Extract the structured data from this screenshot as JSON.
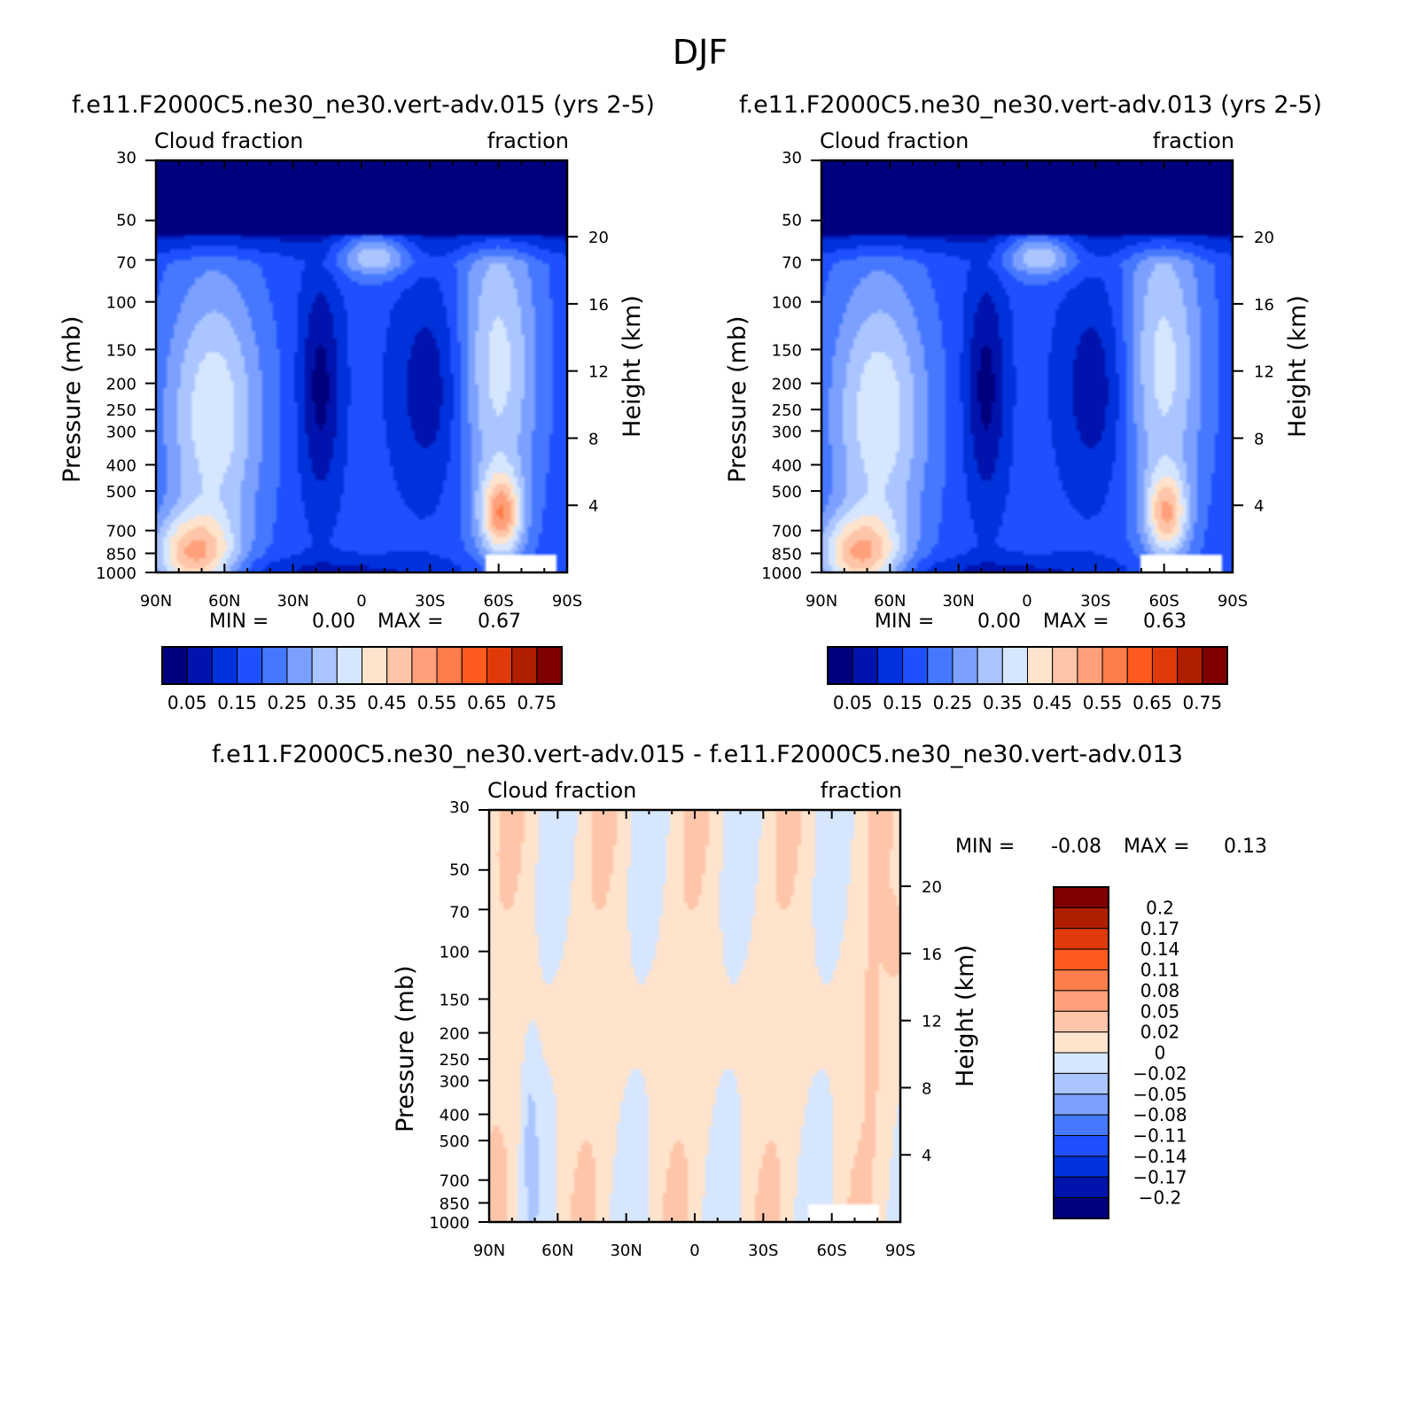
{
  "figure": {
    "title": "DJF",
    "diff_title": "f.e11.F2000C5.ne30_ne30.vert-adv.015 - f.e11.F2000C5.ne30_ne30.vert-adv.013"
  },
  "chart_data": [
    {
      "type": "heatmap",
      "title": "f.e11.F2000C5.ne30_ne30.vert-adv.015 (yrs 2-5)",
      "left_label": "Cloud fraction",
      "right_label": "fraction",
      "ylabel": "Pressure (mb)",
      "ylabel_right": "Height (km)",
      "x_ticks": [
        "90N",
        "60N",
        "30N",
        "0",
        "30S",
        "60S",
        "90S"
      ],
      "y_ticks": [
        "30",
        "50",
        "70",
        "100",
        "150",
        "200",
        "250",
        "300",
        "400",
        "500",
        "700",
        "850",
        "1000"
      ],
      "y2_ticks": [
        "20",
        "16",
        "12",
        "8",
        "4"
      ],
      "min_label": "MIN =",
      "min": "0.00",
      "max_label": "MAX =",
      "max": "0.67",
      "colorbar_labels": [
        "0.05",
        "0.15",
        "0.25",
        "0.35",
        "0.45",
        "0.55",
        "0.65",
        "0.75"
      ]
    },
    {
      "type": "heatmap",
      "title": "f.e11.F2000C5.ne30_ne30.vert-adv.013 (yrs 2-5)",
      "left_label": "Cloud fraction",
      "right_label": "fraction",
      "ylabel": "Pressure (mb)",
      "ylabel_right": "Height (km)",
      "x_ticks": [
        "90N",
        "60N",
        "30N",
        "0",
        "30S",
        "60S",
        "90S"
      ],
      "y_ticks": [
        "30",
        "50",
        "70",
        "100",
        "150",
        "200",
        "250",
        "300",
        "400",
        "500",
        "700",
        "850",
        "1000"
      ],
      "y2_ticks": [
        "20",
        "16",
        "12",
        "8",
        "4"
      ],
      "min_label": "MIN =",
      "min": "0.00",
      "max_label": "MAX =",
      "max": "0.63",
      "colorbar_labels": [
        "0.05",
        "0.15",
        "0.25",
        "0.35",
        "0.45",
        "0.55",
        "0.65",
        "0.75"
      ]
    },
    {
      "type": "heatmap",
      "left_label": "Cloud fraction",
      "right_label": "fraction",
      "ylabel": "Pressure (mb)",
      "ylabel_right": "Height (km)",
      "x_ticks": [
        "90N",
        "60N",
        "30N",
        "0",
        "30S",
        "60S",
        "90S"
      ],
      "y_ticks": [
        "30",
        "50",
        "70",
        "100",
        "150",
        "200",
        "250",
        "300",
        "400",
        "500",
        "700",
        "850",
        "1000"
      ],
      "y2_ticks": [
        "20",
        "16",
        "12",
        "8",
        "4"
      ],
      "min_label": "MIN =",
      "min": "-0.08",
      "max_label": "MAX =",
      "max": "0.13",
      "colorbar_labels": [
        "0.2",
        "0.17",
        "0.14",
        "0.11",
        "0.08",
        "0.05",
        "0.02",
        "0",
        "-0.02",
        "-0.05",
        "-0.08",
        "-0.11",
        "-0.14",
        "-0.17",
        "-0.2"
      ]
    }
  ],
  "colors": {
    "abs_scale": [
      "#00007f",
      "#0014ad",
      "#0032dc",
      "#1e50ff",
      "#4678ff",
      "#7ba0ff",
      "#aac5ff",
      "#d6e6ff",
      "#ffe3cc",
      "#ffc5a8",
      "#ffa07a",
      "#ff7d4a",
      "#ff5a1e",
      "#e03a0a",
      "#b01e00",
      "#7f0000"
    ],
    "diff_scale": [
      "#7f0000",
      "#b01e00",
      "#e03a0a",
      "#ff5a1e",
      "#ff7d4a",
      "#ffa07a",
      "#ffc5a8",
      "#ffe3cc",
      "#d6e6ff",
      "#aac5ff",
      "#7ba0ff",
      "#4678ff",
      "#1e50ff",
      "#0032dc",
      "#0014ad",
      "#00007f"
    ]
  }
}
